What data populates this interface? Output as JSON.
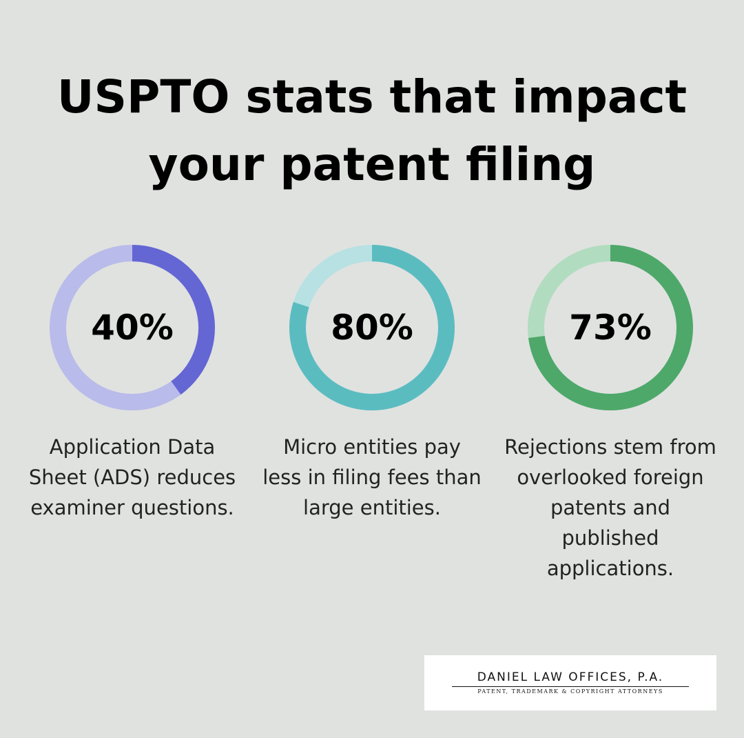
{
  "title": "USPTO stats that impact your patent filing",
  "chart_data": [
    {
      "type": "donut",
      "values": [
        40
      ],
      "value_labels": [
        "40%"
      ],
      "color": "#6466d4",
      "track_color": "#b9bbea",
      "caption": [
        "Application Data",
        "Sheet (ADS) reduces",
        "examiner questions."
      ]
    },
    {
      "type": "donut",
      "values": [
        80
      ],
      "value_labels": [
        "80%"
      ],
      "color": "#5bbcc0",
      "track_color": "#b7e1e3",
      "caption": [
        "Micro entities pay",
        "less in filing fees than",
        "large entities."
      ]
    },
    {
      "type": "donut",
      "values": [
        73
      ],
      "value_labels": [
        "73%"
      ],
      "color": "#4ea86a",
      "track_color": "#b2dcbf",
      "caption": [
        "Rejections stem from",
        "overlooked foreign",
        "patents and",
        "published",
        "applications."
      ]
    }
  ],
  "logo": {
    "name": "DANIEL LAW OFFICES, P.A.",
    "tagline": "PATENT, TRADEMARK & COPYRIGHT ATTORNEYS"
  }
}
